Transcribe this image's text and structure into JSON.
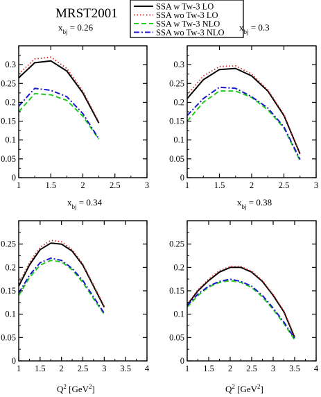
{
  "figure": {
    "title": "MRST2001",
    "xlabel": "Q² [GeV²]"
  },
  "legend": [
    {
      "name": "SSA w Tw-3 LO",
      "color": "#000000",
      "dash": "solid"
    },
    {
      "name": "SSA wo Tw-3 LO",
      "color": "#d42020",
      "dash": "dotted"
    },
    {
      "name": "SSA w Tw-3 NLO",
      "color": "#22cc22",
      "dash": "dashed"
    },
    {
      "name": "SSA wo Tw-3 NLO",
      "color": "#1a1acc",
      "dash": "dashdot"
    }
  ],
  "chart_data": [
    {
      "type": "line",
      "label": "x_bj = 0.26",
      "xlim": [
        1,
        3
      ],
      "ylim": [
        0,
        0.35
      ],
      "xticks": [
        "1",
        "1.5",
        "2",
        "2.5",
        "3"
      ],
      "yticks": [
        "0",
        "0.05",
        "0.1",
        "0.15",
        "0.2",
        "0.25",
        "0.3"
      ],
      "x": [
        1,
        1.25,
        1.5,
        1.75,
        2,
        2.25
      ],
      "series": [
        {
          "name": "SSA w Tw-3 LO",
          "values": [
            0.265,
            0.305,
            0.31,
            0.283,
            0.225,
            0.145
          ]
        },
        {
          "name": "SSA wo Tw-3 LO",
          "values": [
            0.275,
            0.315,
            0.32,
            0.29,
            0.23,
            0.148
          ]
        },
        {
          "name": "SSA w Tw-3 NLO",
          "values": [
            0.175,
            0.223,
            0.22,
            0.205,
            0.163,
            0.102
          ]
        },
        {
          "name": "SSA wo Tw-3 NLO",
          "values": [
            0.19,
            0.237,
            0.232,
            0.215,
            0.17,
            0.103
          ]
        }
      ]
    },
    {
      "type": "line",
      "label": "x_bj = 0.3",
      "xlim": [
        1,
        3
      ],
      "ylim": [
        0,
        0.35
      ],
      "xticks": [
        "1",
        "1.5",
        "2",
        "2.5",
        "3"
      ],
      "yticks": [
        "0",
        "0.05",
        "0.1",
        "0.15",
        "0.2",
        "0.25",
        "0.3"
      ],
      "x": [
        1,
        1.25,
        1.5,
        1.75,
        2,
        2.25,
        2.5,
        2.75
      ],
      "series": [
        {
          "name": "SSA w Tw-3 LO",
          "values": [
            0.21,
            0.26,
            0.287,
            0.29,
            0.27,
            0.23,
            0.165,
            0.063
          ]
        },
        {
          "name": "SSA wo Tw-3 LO",
          "values": [
            0.22,
            0.27,
            0.295,
            0.297,
            0.275,
            0.233,
            0.168,
            0.063
          ]
        },
        {
          "name": "SSA w Tw-3 NLO",
          "values": [
            0.15,
            0.2,
            0.23,
            0.23,
            0.213,
            0.18,
            0.132,
            0.045
          ]
        },
        {
          "name": "SSA wo Tw-3 NLO",
          "values": [
            0.165,
            0.21,
            0.24,
            0.237,
            0.215,
            0.185,
            0.135,
            0.048
          ]
        }
      ]
    },
    {
      "type": "line",
      "label": "x_bj = 0.34",
      "xlim": [
        1,
        4
      ],
      "ylim": [
        0,
        0.3
      ],
      "xticks": [
        "1",
        "1.5",
        "2",
        "2.5",
        "3",
        "3.5",
        "4"
      ],
      "yticks": [
        "0",
        "0.05",
        "0.1",
        "0.15",
        "0.2",
        "0.25"
      ],
      "x": [
        1,
        1.25,
        1.5,
        1.75,
        2,
        2.25,
        2.5,
        2.75,
        3
      ],
      "series": [
        {
          "name": "SSA w Tw-3 LO",
          "values": [
            0.16,
            0.205,
            0.238,
            0.252,
            0.25,
            0.235,
            0.205,
            0.16,
            0.115
          ]
        },
        {
          "name": "SSA wo Tw-3 LO",
          "values": [
            0.165,
            0.21,
            0.243,
            0.258,
            0.255,
            0.238,
            0.207,
            0.162,
            0.117
          ]
        },
        {
          "name": "SSA w Tw-3 NLO",
          "values": [
            0.14,
            0.178,
            0.205,
            0.215,
            0.212,
            0.195,
            0.168,
            0.133,
            0.1
          ]
        },
        {
          "name": "SSA wo Tw-3 NLO",
          "values": [
            0.145,
            0.183,
            0.21,
            0.22,
            0.215,
            0.198,
            0.172,
            0.137,
            0.102
          ]
        }
      ]
    },
    {
      "type": "line",
      "label": "x_bj = 0.38",
      "xlim": [
        1,
        4
      ],
      "ylim": [
        0,
        0.3
      ],
      "xticks": [
        "1",
        "1.5",
        "2",
        "2.5",
        "3",
        "3.5",
        "4"
      ],
      "yticks": [
        "0",
        "0.05",
        "0.1",
        "0.15",
        "0.2",
        "0.25"
      ],
      "x": [
        1,
        1.25,
        1.5,
        1.75,
        2,
        2.25,
        2.5,
        2.75,
        3,
        3.25,
        3.5
      ],
      "series": [
        {
          "name": "SSA w Tw-3 LO",
          "values": [
            0.12,
            0.15,
            0.172,
            0.19,
            0.2,
            0.2,
            0.19,
            0.17,
            0.14,
            0.105,
            0.05
          ]
        },
        {
          "name": "SSA wo Tw-3 LO",
          "values": [
            0.122,
            0.152,
            0.175,
            0.193,
            0.202,
            0.202,
            0.192,
            0.172,
            0.142,
            0.107,
            0.052
          ]
        },
        {
          "name": "SSA w Tw-3 NLO",
          "values": [
            0.115,
            0.14,
            0.158,
            0.168,
            0.172,
            0.168,
            0.157,
            0.137,
            0.11,
            0.08,
            0.045
          ]
        },
        {
          "name": "SSA wo Tw-3 NLO",
          "values": [
            0.118,
            0.143,
            0.16,
            0.17,
            0.175,
            0.17,
            0.16,
            0.14,
            0.113,
            0.083,
            0.048
          ]
        }
      ]
    }
  ]
}
